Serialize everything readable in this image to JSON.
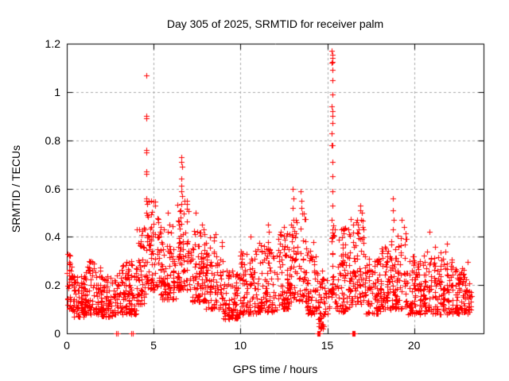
{
  "chart_data": {
    "type": "scatter",
    "title": "Day 305 of 2025, SRMTID for receiver palm",
    "xlabel": "GPS time / hours",
    "ylabel": "SRMTID / TECUs",
    "xlim": [
      0,
      24
    ],
    "ylim": [
      0,
      1.2
    ],
    "xticks": [
      0,
      5,
      10,
      15,
      20
    ],
    "xtick_labels": [
      "0",
      "5",
      "10",
      "15",
      "20"
    ],
    "yticks": [
      0,
      0.2,
      0.4,
      0.6,
      0.8,
      1,
      1.2
    ],
    "ytick_labels": [
      "0",
      "0.2",
      "0.4",
      "0.6",
      "0.8",
      "1",
      "1.2"
    ],
    "grid": {
      "on": true,
      "color": "#a8a8a8",
      "dash": [
        3,
        3
      ]
    },
    "legend": "none",
    "marker": {
      "shape": "plus",
      "color": "#ff0000",
      "size": 7
    },
    "axis_color": "#000000",
    "background": "#ffffff",
    "seed": 20251101,
    "note_max_point": [
      15.28,
      1.17
    ],
    "bands": [
      [
        0.0,
        0.3,
        30,
        0.1,
        0.33
      ],
      [
        0.3,
        1.0,
        72,
        0.07,
        0.24
      ],
      [
        1.0,
        2.0,
        100,
        0.08,
        0.3
      ],
      [
        2.0,
        3.0,
        95,
        0.07,
        0.25
      ],
      [
        3.0,
        4.0,
        95,
        0.08,
        0.3
      ],
      [
        4.0,
        4.6,
        55,
        0.12,
        0.44
      ],
      [
        4.6,
        5.3,
        72,
        0.18,
        0.55
      ],
      [
        5.3,
        6.3,
        95,
        0.14,
        0.46
      ],
      [
        6.3,
        7.2,
        92,
        0.18,
        0.55
      ],
      [
        7.2,
        8.0,
        80,
        0.13,
        0.46
      ],
      [
        8.0,
        9.0,
        90,
        0.1,
        0.4
      ],
      [
        9.0,
        10.0,
        85,
        0.06,
        0.29
      ],
      [
        10.0,
        11.0,
        90,
        0.08,
        0.35
      ],
      [
        11.0,
        12.0,
        90,
        0.09,
        0.38
      ],
      [
        12.0,
        12.8,
        75,
        0.1,
        0.42
      ],
      [
        12.8,
        13.8,
        85,
        0.13,
        0.5
      ],
      [
        13.8,
        14.4,
        55,
        0.08,
        0.38
      ],
      [
        14.4,
        14.8,
        42,
        0.02,
        0.26
      ],
      [
        14.8,
        15.2,
        18,
        0.08,
        0.22
      ],
      [
        15.2,
        15.4,
        26,
        0.15,
        0.45
      ],
      [
        15.4,
        16.3,
        85,
        0.09,
        0.44
      ],
      [
        16.3,
        17.2,
        85,
        0.12,
        0.48
      ],
      [
        17.2,
        18.1,
        75,
        0.08,
        0.31
      ],
      [
        18.1,
        18.6,
        50,
        0.1,
        0.38
      ],
      [
        18.6,
        19.6,
        85,
        0.1,
        0.42
      ],
      [
        19.6,
        20.5,
        78,
        0.08,
        0.32
      ],
      [
        20.5,
        21.5,
        85,
        0.08,
        0.36
      ],
      [
        21.5,
        22.3,
        72,
        0.08,
        0.34
      ],
      [
        22.3,
        23.3,
        92,
        0.08,
        0.3
      ]
    ],
    "spikes": [
      [
        4.56,
        1.07
      ],
      [
        4.58,
        0.9
      ],
      [
        4.6,
        0.89
      ],
      [
        4.57,
        0.76
      ],
      [
        4.59,
        0.75
      ],
      [
        4.58,
        0.67
      ],
      [
        4.56,
        0.66
      ],
      [
        4.6,
        0.56
      ],
      [
        4.58,
        0.55
      ],
      [
        4.57,
        0.5
      ],
      [
        6.58,
        0.73
      ],
      [
        6.6,
        0.71
      ],
      [
        6.62,
        0.69
      ],
      [
        6.59,
        0.64
      ],
      [
        6.61,
        0.61
      ],
      [
        6.6,
        0.59
      ],
      [
        6.63,
        0.57
      ],
      [
        13.02,
        0.6
      ],
      [
        13.04,
        0.56
      ],
      [
        13.0,
        0.52
      ],
      [
        13.06,
        0.47
      ],
      [
        13.48,
        0.59
      ],
      [
        13.5,
        0.55
      ],
      [
        13.52,
        0.52
      ],
      [
        15.27,
        1.17
      ],
      [
        15.29,
        1.155
      ],
      [
        15.28,
        1.14
      ],
      [
        15.3,
        1.125
      ],
      [
        15.27,
        1.12
      ],
      [
        15.28,
        1.09
      ],
      [
        15.29,
        1.05
      ],
      [
        15.28,
        0.99
      ],
      [
        15.27,
        0.94
      ],
      [
        15.3,
        0.92
      ],
      [
        15.28,
        0.9
      ],
      [
        15.29,
        0.87
      ],
      [
        15.27,
        0.83
      ],
      [
        15.26,
        0.78
      ],
      [
        15.31,
        0.78
      ],
      [
        15.28,
        0.71
      ],
      [
        15.29,
        0.65
      ],
      [
        15.28,
        0.59
      ],
      [
        15.3,
        0.53
      ],
      [
        15.27,
        0.47
      ],
      [
        15.28,
        0.43
      ],
      [
        16.88,
        0.53
      ],
      [
        16.92,
        0.51
      ],
      [
        17.0,
        0.5
      ],
      [
        16.95,
        0.47
      ],
      [
        17.05,
        0.44
      ],
      [
        18.78,
        0.56
      ],
      [
        18.8,
        0.51
      ],
      [
        18.82,
        0.47
      ],
      [
        18.79,
        0.43
      ],
      [
        11.6,
        0.45
      ],
      [
        11.65,
        0.42
      ],
      [
        12.5,
        0.44
      ],
      [
        10.6,
        0.4
      ],
      [
        19.3,
        0.47
      ],
      [
        19.4,
        0.44
      ],
      [
        20.9,
        0.42
      ],
      [
        21.9,
        0.37
      ],
      [
        8.55,
        0.41
      ],
      [
        0.05,
        0.33
      ],
      [
        7.4,
        0.5
      ],
      [
        5.8,
        0.5
      ]
    ],
    "zeros": [
      2.86,
      2.94,
      3.7,
      3.78,
      14.44,
      14.48,
      14.52,
      14.56,
      16.44,
      16.48,
      16.52,
      16.56,
      16.6
    ]
  }
}
